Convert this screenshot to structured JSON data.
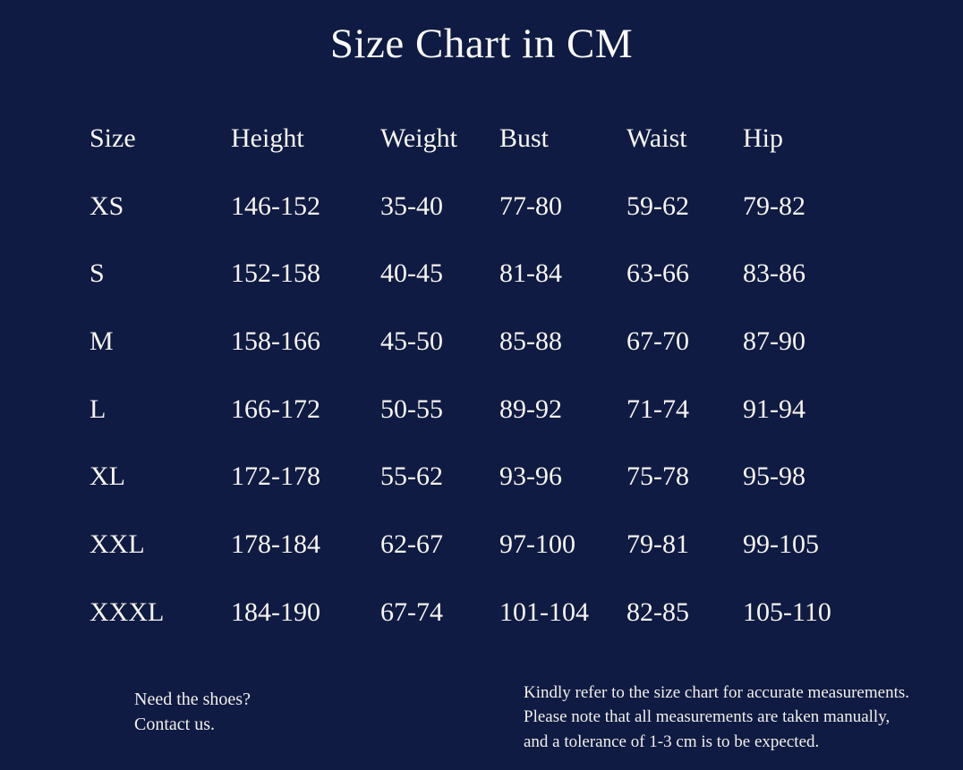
{
  "chart_data": {
    "type": "table",
    "title": "Size Chart in CM",
    "columns": [
      "Size",
      "Height",
      "Weight",
      "Bust",
      "Waist",
      "Hip"
    ],
    "rows": [
      [
        "XS",
        "146-152",
        "35-40",
        "77-80",
        "59-62",
        "79-82"
      ],
      [
        "S",
        "152-158",
        "40-45",
        "81-84",
        "63-66",
        "83-86"
      ],
      [
        "M",
        "158-166",
        "45-50",
        "85-88",
        "67-70",
        "87-90"
      ],
      [
        "L",
        "166-172",
        "50-55",
        "89-92",
        "71-74",
        "91-94"
      ],
      [
        "XL",
        "172-178",
        "55-62",
        "93-96",
        "75-78",
        "95-98"
      ],
      [
        "XXL",
        "178-184",
        "62-67",
        "97-100",
        "79-81",
        "99-105"
      ],
      [
        "XXXL",
        "184-190",
        "67-74",
        "101-104",
        "82-85",
        "105-110"
      ]
    ]
  },
  "footer": {
    "contact": {
      "line1": "Need the shoes?",
      "line2": "Contact us."
    },
    "note": {
      "line1": "Kindly refer to the size chart for accurate measurements.",
      "line2": "Please note that all measurements are taken manually,",
      "line3": "and a tolerance of 1-3 cm is to be expected."
    }
  },
  "colors": {
    "background": "#0f1b43",
    "text": "#f7f4ee"
  }
}
